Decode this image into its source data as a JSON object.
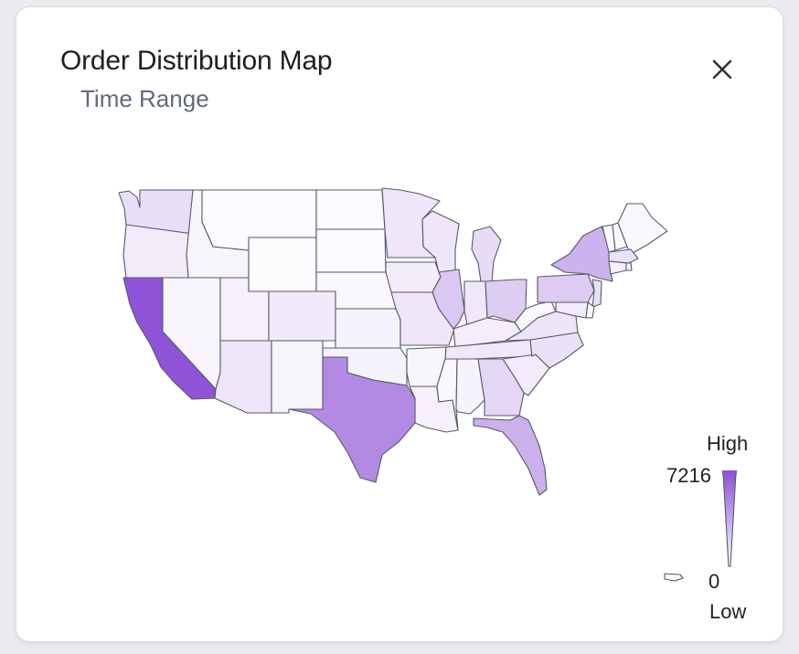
{
  "header": {
    "title": "Order Distribution Map",
    "subtitle": "Time Range"
  },
  "legend": {
    "high_label": "High",
    "low_label": "Low",
    "max_value": "7216",
    "min_value": "0",
    "color_low": "#ffffff",
    "color_high": "#8e53d6"
  },
  "map_data": {
    "type": "choropleth",
    "region": "United States",
    "color_scale": [
      "#ffffff",
      "#8e53d6"
    ],
    "range": [
      0,
      7216
    ],
    "states": {
      "CA": 7216,
      "TX": 4900,
      "FL": 3300,
      "NY": 3200,
      "IL": 2300,
      "PA": 2200,
      "OH": 2100,
      "GA": 1700,
      "MI": 1500,
      "WA": 1400,
      "NJ": 1400,
      "MA": 1300,
      "NC": 1200,
      "VA": 1150,
      "AZ": 1100,
      "MO": 1050,
      "WI": 1000,
      "MN": 1000,
      "TN": 950,
      "IN": 950,
      "CO": 900,
      "MD": 900,
      "OR": 850,
      "SC": 800,
      "IA": 750,
      "KY": 700,
      "UT": 650,
      "LA": 650,
      "CT": 650,
      "OK": 550,
      "AL": 500,
      "KS": 500,
      "NV": 450,
      "NM": 450,
      "ID": 400,
      "AR": 400,
      "MS": 350,
      "NE": 350,
      "WV": 300,
      "NH": 300,
      "ME": 300,
      "RI": 300,
      "DE": 250,
      "MT": 200,
      "SD": 200,
      "ND": 200,
      "WY": 150,
      "VT": 150
    }
  }
}
